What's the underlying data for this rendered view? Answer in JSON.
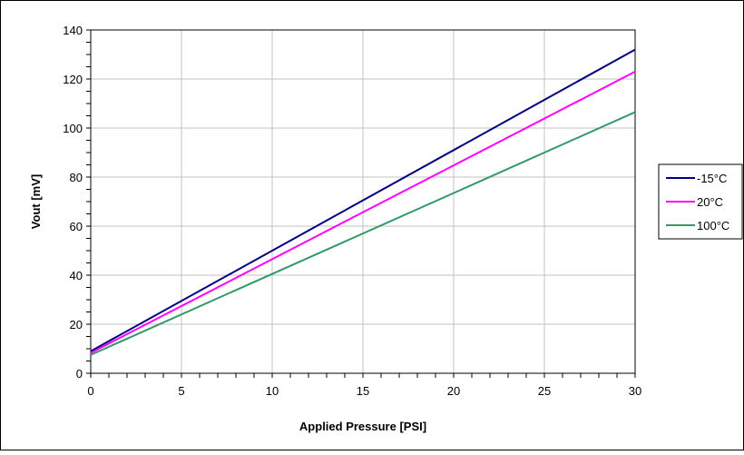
{
  "chart_data": {
    "type": "line",
    "title": "",
    "xlabel": "Applied Pressure [PSI]",
    "ylabel": "Vout [mV]",
    "xlim": [
      0,
      30
    ],
    "ylim": [
      0,
      140
    ],
    "xticks": [
      0,
      5,
      10,
      15,
      20,
      25,
      30
    ],
    "yticks": [
      0,
      20,
      40,
      60,
      80,
      100,
      120,
      140
    ],
    "x_tick_labels": [
      "0",
      "5",
      "10",
      "15",
      "20",
      "25",
      "30"
    ],
    "y_tick_labels": [
      "0",
      "20",
      "40",
      "60",
      "80",
      "100",
      "120",
      "140"
    ],
    "grid": true,
    "legend_position": "right",
    "series": [
      {
        "name": "-15°C",
        "color": "#000080",
        "x": [
          0,
          30
        ],
        "y": [
          9,
          132
        ]
      },
      {
        "name": "20°C",
        "color": "#ff00ff",
        "x": [
          0,
          30
        ],
        "y": [
          8.3,
          123
        ]
      },
      {
        "name": "100°C",
        "color": "#339966",
        "x": [
          0,
          30
        ],
        "y": [
          7.5,
          106.5
        ]
      }
    ]
  }
}
